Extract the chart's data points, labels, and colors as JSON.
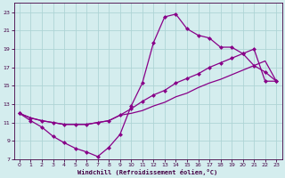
{
  "xlabel": "Windchill (Refroidissement éolien,°C)",
  "bg_color": "#d4edee",
  "grid_color": "#aed4d5",
  "line_color": "#880088",
  "xlim": [
    -0.5,
    23.5
  ],
  "ylim": [
    7,
    24
  ],
  "xticks": [
    0,
    1,
    2,
    3,
    4,
    5,
    6,
    7,
    8,
    9,
    10,
    11,
    12,
    13,
    14,
    15,
    16,
    17,
    18,
    19,
    20,
    21,
    22,
    23
  ],
  "yticks": [
    7,
    9,
    11,
    13,
    15,
    17,
    19,
    21,
    23
  ],
  "series1_x": [
    0,
    1,
    2,
    3,
    4,
    5,
    6,
    7,
    8,
    9,
    10,
    11,
    12,
    13,
    14,
    15,
    16,
    17,
    18,
    19,
    20,
    21,
    22,
    23
  ],
  "series1_y": [
    12.0,
    11.2,
    10.5,
    9.5,
    8.8,
    8.2,
    7.8,
    7.3,
    8.3,
    9.7,
    12.8,
    15.3,
    19.7,
    22.5,
    22.8,
    21.2,
    20.5,
    20.2,
    19.2,
    19.2,
    18.5,
    17.2,
    16.5,
    15.5
  ],
  "series2_x": [
    0,
    1,
    2,
    3,
    4,
    5,
    6,
    7,
    8,
    9,
    10,
    11,
    12,
    13,
    14,
    15,
    16,
    17,
    18,
    19,
    20,
    21,
    22,
    23
  ],
  "series2_y": [
    12.0,
    11.5,
    11.2,
    11.0,
    10.8,
    10.8,
    10.8,
    11.0,
    11.2,
    11.8,
    12.5,
    13.3,
    14.0,
    14.5,
    15.3,
    15.8,
    16.3,
    17.0,
    17.5,
    18.0,
    18.5,
    19.0,
    15.5,
    15.5
  ],
  "series3_x": [
    0,
    1,
    2,
    3,
    4,
    5,
    6,
    7,
    8,
    9,
    10,
    11,
    12,
    13,
    14,
    15,
    16,
    17,
    18,
    19,
    20,
    21,
    22,
    23
  ],
  "series3_y": [
    12.0,
    11.5,
    11.2,
    11.0,
    10.8,
    10.8,
    10.8,
    11.0,
    11.2,
    11.8,
    12.0,
    12.3,
    12.8,
    13.2,
    13.8,
    14.2,
    14.8,
    15.3,
    15.7,
    16.2,
    16.7,
    17.2,
    17.7,
    15.5
  ]
}
